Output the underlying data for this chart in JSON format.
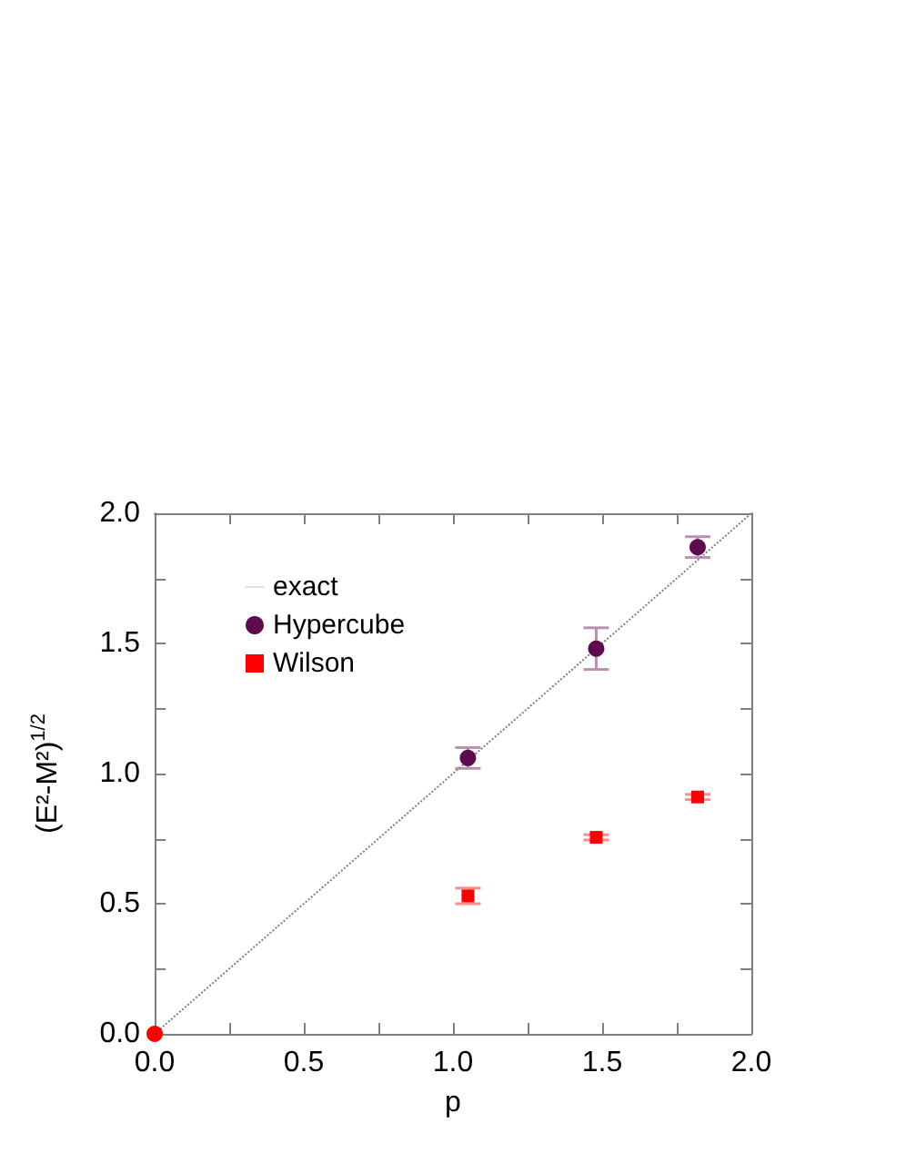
{
  "chart_data": {
    "type": "scatter",
    "xlabel": "p",
    "ylabel": "(E²-M²)$^{1/2}$",
    "xlim": [
      0,
      2
    ],
    "ylim": [
      0,
      2
    ],
    "xticks": [
      {
        "value": 0,
        "label": "0.0"
      },
      {
        "value": 0.25,
        "label": null
      },
      {
        "value": 0.5,
        "label": "0.5"
      },
      {
        "value": 0.75,
        "label": null
      },
      {
        "value": 1,
        "label": "1.0"
      },
      {
        "value": 1.25,
        "label": null
      },
      {
        "value": 1.5,
        "label": "1.5"
      },
      {
        "value": 1.75,
        "label": null
      },
      {
        "value": 2,
        "label": "2.0"
      }
    ],
    "yticks": [
      {
        "value": 0,
        "label": "0.0"
      },
      {
        "value": 0.25,
        "label": null
      },
      {
        "value": 0.5,
        "label": "0.5"
      },
      {
        "value": 0.75,
        "label": null
      },
      {
        "value": 1,
        "label": "1.0"
      },
      {
        "value": 1.25,
        "label": null
      },
      {
        "value": 1.5,
        "label": "1.5"
      },
      {
        "value": 1.75,
        "label": null
      },
      {
        "value": 2,
        "label": "2.0"
      }
    ],
    "grid": false,
    "legend": "top left",
    "series": [
      {
        "name": "exact",
        "type": "line",
        "line_style": "dotted",
        "marker": "none",
        "color": "#808080",
        "x": [
          0,
          2
        ],
        "values": [
          0,
          2
        ]
      },
      {
        "name": "Hypercube",
        "marker": "circle",
        "color": "#5e0a4e",
        "x": [
          1.05,
          1.48,
          1.82
        ],
        "values": [
          1.06,
          1.48,
          1.87
        ],
        "errors": [
          0.04,
          0.08,
          0.04
        ]
      },
      {
        "name": "Wilson",
        "marker": "square",
        "color": "#ff0000",
        "x": [
          1.05,
          1.48,
          1.82
        ],
        "values": [
          0.53,
          0.755,
          0.91
        ],
        "errors": [
          0.03,
          0.01,
          0.01
        ]
      },
      {
        "marker": "circle",
        "color": "#ff0000",
        "x": [
          0
        ],
        "values": [
          0
        ]
      }
    ]
  }
}
